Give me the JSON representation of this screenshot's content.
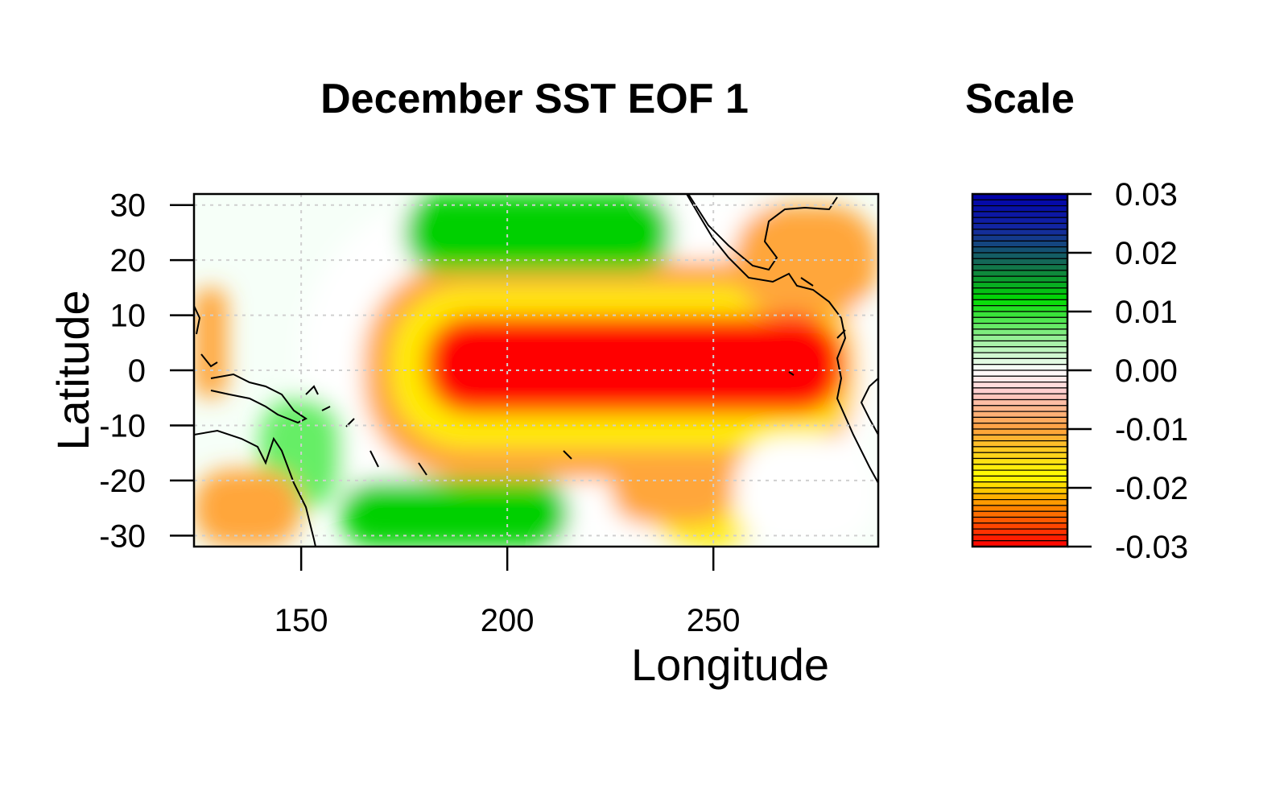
{
  "chart_data": [
    {
      "type": "heatmap",
      "title": "December SST EOF 1",
      "xlabel": "Longitude",
      "ylabel": "Latitude",
      "xlim": [
        124,
        290
      ],
      "ylim": [
        -32,
        32
      ],
      "x_ticks": [
        150,
        200,
        250
      ],
      "y_ticks": [
        -30,
        -20,
        -10,
        0,
        10,
        20,
        30
      ],
      "grid": true,
      "field_description": "EOF loading: strong negative (red, about -0.03) band along equator 175-285 E, green positive (about +0.01) lobes near 205 E at 25 N and 30 S, near-zero (white) in western Pacific",
      "regions": [
        {
          "name": "equatorial-core",
          "lon": [
            180,
            280
          ],
          "lat": [
            -8,
            10
          ],
          "value": -0.03
        },
        {
          "name": "north-green-lobe",
          "lon": [
            175,
            240
          ],
          "lat": [
            18,
            32
          ],
          "value": 0.008
        },
        {
          "name": "south-green-lobe",
          "lon": [
            160,
            215
          ],
          "lat": [
            -32,
            -20
          ],
          "value": 0.008
        },
        {
          "name": "west-green",
          "lon": [
            140,
            160
          ],
          "lat": [
            -25,
            -5
          ],
          "value": 0.005
        },
        {
          "name": "southwest-orange",
          "lon": [
            124,
            150
          ],
          "lat": [
            -32,
            -18
          ],
          "value": -0.01
        },
        {
          "name": "east-orange",
          "lon": [
            255,
            290
          ],
          "lat": [
            10,
            30
          ],
          "value": -0.012
        }
      ]
    },
    {
      "type": "colorbar",
      "title": "Scale",
      "ticks": [
        "0.03",
        "0.02",
        "0.01",
        "0.00",
        "-0.01",
        "-0.02",
        "-0.03"
      ],
      "range": [
        -0.03,
        0.03
      ],
      "colors": {
        "min": "#ff0000",
        "low": "#ffff00",
        "mid_low": "#ff9d3a",
        "zero": "#ffffff",
        "mid_high": "#00e000",
        "high": "#1a7a4a",
        "max": "#0000b0"
      }
    }
  ]
}
